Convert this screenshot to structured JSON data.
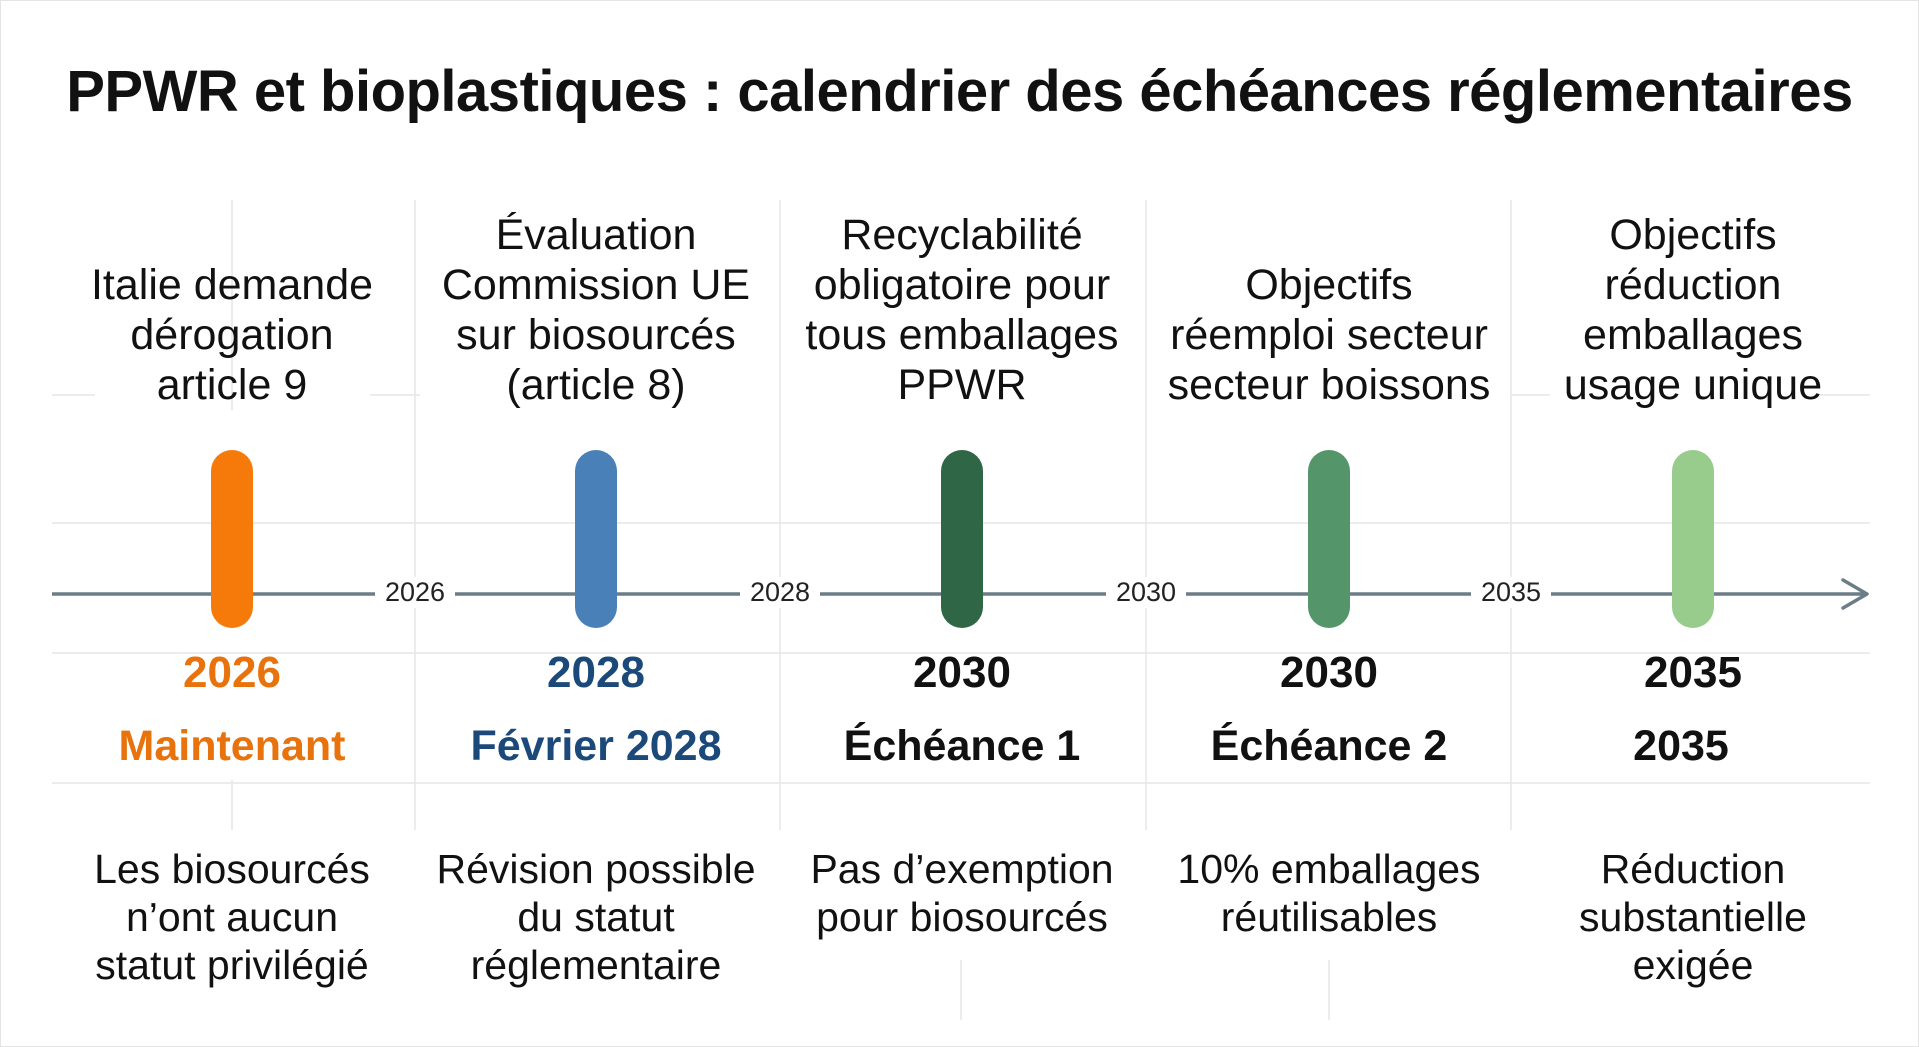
{
  "title": "PPWR et bioplastiques : calendrier des échéances réglementaires",
  "axis_ticks": [
    "2026",
    "2028",
    "2030",
    "2035"
  ],
  "milestones": [
    {
      "label": "Italie demande\ndérogation\narticle 9",
      "year": "2026",
      "status": "Maintenant",
      "description": "Les biosourcés\nn’ont aucun\nstatut privilégié",
      "color": "#f57a0a",
      "text_color": "#e8720c"
    },
    {
      "label": "Évaluation\nCommission UE\nsur biosourcés\n(article 8)",
      "year": "2028",
      "status": "Février 2028",
      "description": "Révision possible\ndu statut\nréglementaire",
      "color": "#4a80b8",
      "text_color": "#1b4a7a"
    },
    {
      "label": "Recyclabilité\nobligatoire pour\ntous emballages\nPPWR",
      "year": "2030",
      "status": "Échéance 1",
      "description": "Pas d’exemption\npour biosourcés",
      "color": "#2f6645",
      "text_color": "#111111"
    },
    {
      "label": "Objectifs\nréemploi secteur\nsecteur boissons",
      "year": "2030",
      "status": "Échéance 2",
      "description": "10% emballages\nréutilisables",
      "color": "#55956a",
      "text_color": "#111111"
    },
    {
      "label": "Objectifs\nréduction\nemballages\nusage unique",
      "year": "2035",
      "status": "2035",
      "description": "Réduction\nsubstantielle\nexigée",
      "color": "#98cc8c",
      "text_color": "#111111"
    }
  ]
}
